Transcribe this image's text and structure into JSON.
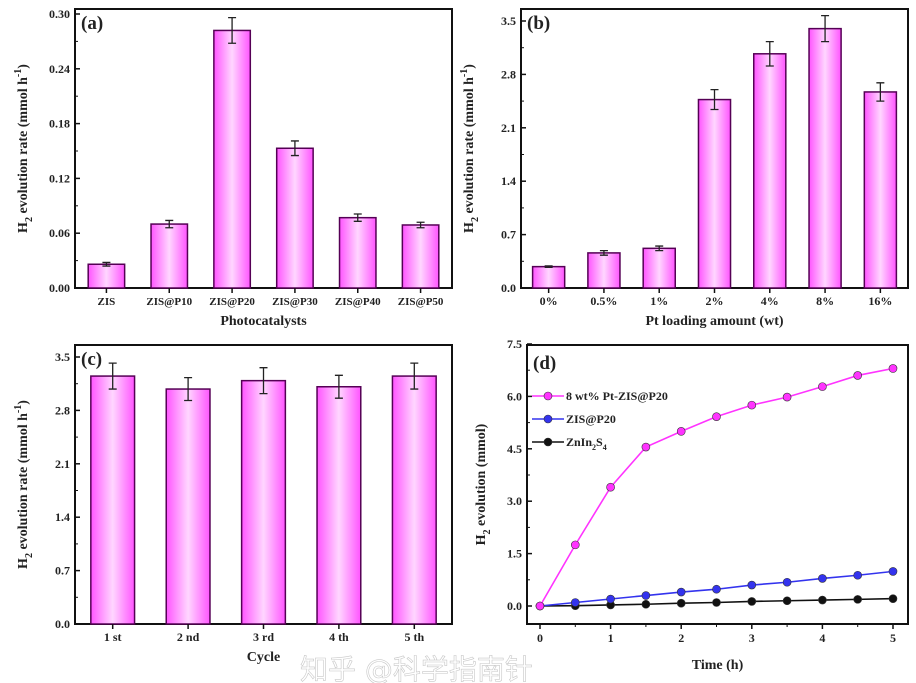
{
  "chart_data": [
    {
      "type": "bar",
      "panel_label": "(a)",
      "xlabel": "Photocatalysts",
      "ylabel": "H2 evolution rate (mmol h-1)",
      "categories": [
        "ZIS",
        "ZIS@P10",
        "ZIS@P20",
        "ZIS@P30",
        "ZIS@P40",
        "ZIS@P50"
      ],
      "values": [
        0.026,
        0.07,
        0.282,
        0.153,
        0.077,
        0.069
      ],
      "errors": [
        0.002,
        0.004,
        0.014,
        0.008,
        0.004,
        0.003
      ],
      "ylim": [
        0,
        0.3
      ],
      "yticks": [
        "0.00",
        "0.06",
        "0.12",
        "0.18",
        "0.24",
        "0.30"
      ]
    },
    {
      "type": "bar",
      "panel_label": "(b)",
      "xlabel": "Pt loading amount (wt)",
      "ylabel": "H2 evolution rate (mmol h-1)",
      "categories": [
        "0%",
        "0.5%",
        "1%",
        "2%",
        "4%",
        "8%",
        "16%"
      ],
      "values": [
        0.28,
        0.46,
        0.52,
        2.47,
        3.07,
        3.4,
        2.57
      ],
      "errors": [
        0.01,
        0.03,
        0.03,
        0.13,
        0.16,
        0.17,
        0.12
      ],
      "ylim": [
        0,
        3.5
      ],
      "yticks": [
        "0.0",
        "0.7",
        "1.4",
        "2.1",
        "2.8",
        "3.5"
      ]
    },
    {
      "type": "bar",
      "panel_label": "(c)",
      "xlabel": "Cycle",
      "ylabel": "H2 evolution rate (mmol h-1)",
      "categories": [
        "1 st",
        "2 nd",
        "3 rd",
        "4 th",
        "5 th"
      ],
      "values": [
        3.25,
        3.08,
        3.19,
        3.11,
        3.25
      ],
      "errors": [
        0.17,
        0.15,
        0.17,
        0.15,
        0.17
      ],
      "ylim": [
        0,
        3.5
      ],
      "yticks": [
        "0.0",
        "0.7",
        "1.4",
        "2.1",
        "2.8",
        "3.5"
      ]
    },
    {
      "type": "line",
      "panel_label": "(d)",
      "xlabel": "Time (h)",
      "ylabel": "H2 evolution (mmol)",
      "x": [
        0,
        0.5,
        1,
        1.5,
        2,
        2.5,
        3,
        3.5,
        4,
        4.5,
        5
      ],
      "xlim": [
        0,
        5
      ],
      "xticks": [
        "0",
        "1",
        "2",
        "3",
        "4",
        "5"
      ],
      "ylim": [
        0,
        7.5
      ],
      "yticks": [
        "0.0",
        "1.5",
        "3.0",
        "4.5",
        "6.0",
        "7.5"
      ],
      "legend": "top-left",
      "series": [
        {
          "name": "8 wt% Pt-ZIS@P20",
          "color": "#ff33ff",
          "values": [
            0,
            1.75,
            3.4,
            4.55,
            5.0,
            5.42,
            5.75,
            5.98,
            6.28,
            6.6,
            6.8
          ]
        },
        {
          "name": "ZIS@P20",
          "color": "#3333ee",
          "values": [
            0,
            0.1,
            0.2,
            0.3,
            0.4,
            0.48,
            0.6,
            0.68,
            0.79,
            0.88,
            0.99
          ]
        },
        {
          "name": "ZnIn2S4",
          "color": "#111111",
          "values": [
            0,
            0.01,
            0.03,
            0.05,
            0.08,
            0.1,
            0.13,
            0.15,
            0.17,
            0.19,
            0.21
          ]
        }
      ]
    }
  ],
  "colors": {
    "bar_edge": "#ff55ff",
    "bar_center": "#ffd6ff",
    "bar_outline": "#550055"
  },
  "watermark": "知乎 @科学指南针"
}
